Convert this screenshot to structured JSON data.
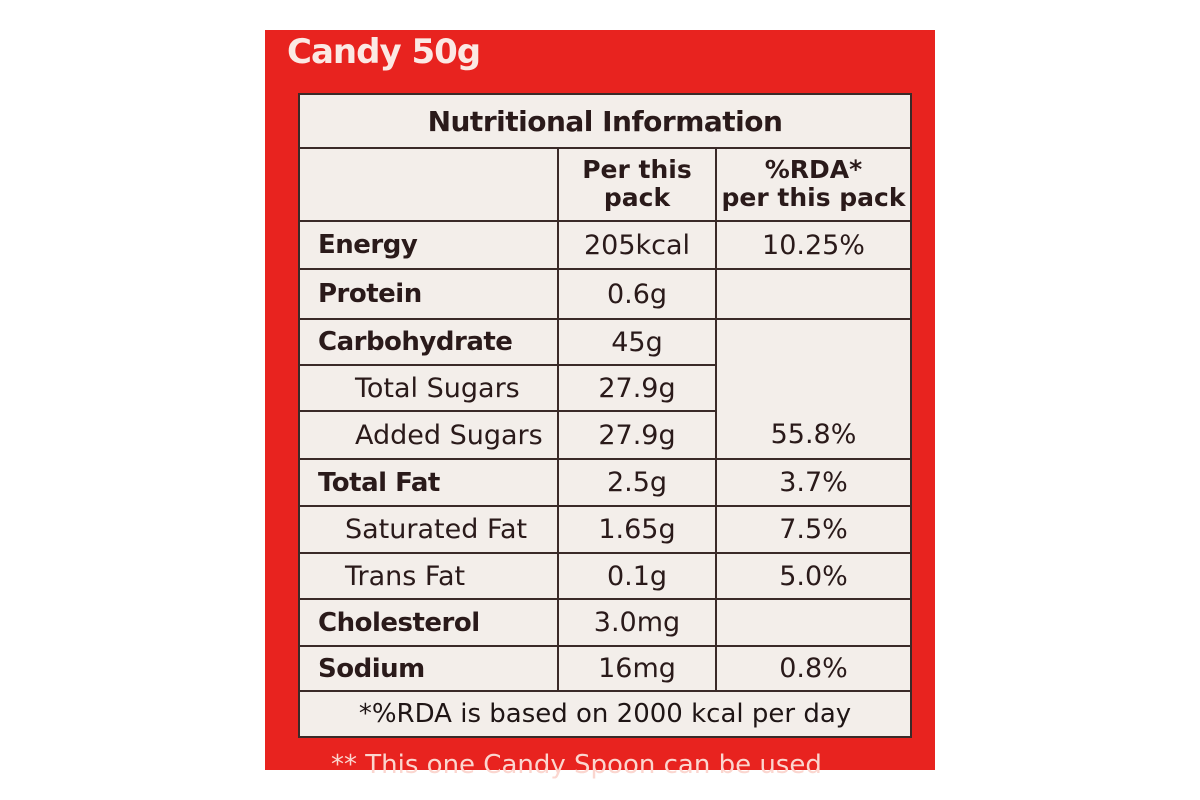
{
  "product_title": "Candy 50g",
  "table": {
    "title": "Nutritional Information",
    "headers": {
      "per_pack": [
        "Per this",
        "pack"
      ],
      "rda": [
        "%RDA*",
        "per this pack"
      ]
    },
    "rows": [
      {
        "label": "Energy",
        "value": "205kcal",
        "rda": "10.25%"
      },
      {
        "label": "Protein",
        "value": "0.6g",
        "rda": ""
      },
      {
        "label": "Carbohydrate",
        "value": "45g",
        "rda": ""
      },
      {
        "label": "Total Sugars",
        "value": "27.9g",
        "rda": ""
      },
      {
        "label": "Added Sugars",
        "value": "27.9g",
        "rda": "55.8%"
      },
      {
        "label": "Total Fat",
        "value": "2.5g",
        "rda": "3.7%"
      },
      {
        "label": "Saturated Fat",
        "value": "1.65g",
        "rda": "7.5%"
      },
      {
        "label": "Trans Fat",
        "value": "0.1g",
        "rda": "5.0%"
      },
      {
        "label": "Cholesterol",
        "value": "3.0mg",
        "rda": ""
      },
      {
        "label": "Sodium",
        "value": "16mg",
        "rda": "0.8%"
      }
    ],
    "footnote": "*%RDA is based on 2000 kcal per day"
  },
  "bottom_note": "** This one Candy Spoon can be used",
  "colors": {
    "package_red": "#e8231f",
    "label_background": "#f3eeea",
    "text": "#2a1a1a"
  }
}
